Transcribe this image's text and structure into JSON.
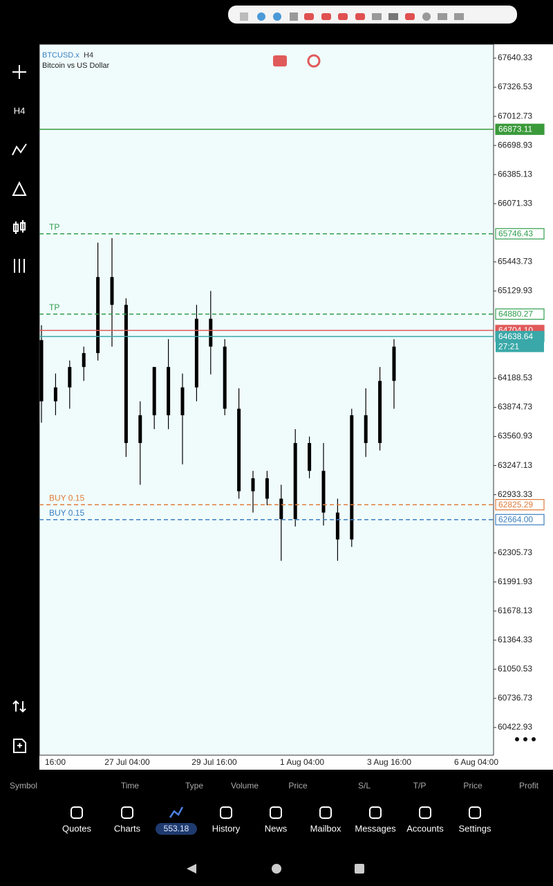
{
  "toolbar": {
    "timeframe": "H4"
  },
  "chart_data": {
    "type": "candlestick",
    "symbol": "BTCUSD.x",
    "timeframe": "H4",
    "description": "Bitcoin vs US Dollar",
    "x_labels": [
      "16:00",
      "27 Jul 04:00",
      "29 Jul 16:00",
      "1 Aug 04:00",
      "3 Aug 16:00",
      "6 Aug 04:00"
    ],
    "open": [
      64600,
      63940,
      64090,
      64310,
      64460,
      65280,
      64980,
      63490,
      63790,
      64310,
      63790,
      64090,
      64830,
      64530,
      63860,
      62970,
      63110,
      62890,
      62670,
      63490,
      63190,
      62740,
      62450,
      63790,
      63490,
      64160
    ],
    "high": [
      64760,
      64240,
      64380,
      64530,
      65650,
      65700,
      65050,
      63940,
      64310,
      64610,
      64240,
      64980,
      65130,
      64610,
      64080,
      63190,
      63190,
      63040,
      63640,
      63560,
      63490,
      62890,
      63860,
      64080,
      64310,
      64610
    ],
    "low": [
      63710,
      63790,
      63860,
      64160,
      64380,
      64530,
      63340,
      63040,
      63640,
      63640,
      63260,
      63940,
      64230,
      63790,
      62890,
      62740,
      62820,
      62220,
      62590,
      63110,
      62600,
      62220,
      62370,
      63340,
      63410,
      63860
    ],
    "close": [
      63940,
      64090,
      64310,
      64460,
      65280,
      64980,
      63490,
      63790,
      64310,
      63790,
      64090,
      64830,
      64530,
      63860,
      62970,
      63110,
      62890,
      62670,
      63490,
      63190,
      62740,
      62450,
      63790,
      63490,
      64160,
      64530
    ],
    "color": "#000000",
    "background": "#f0fcfc",
    "ylim": [
      60124.2,
      67789.7
    ],
    "yticks": [
      67640.33,
      67326.53,
      67012.73,
      66698.93,
      66385.13,
      66071.33,
      65443.73,
      65129.93,
      64188.53,
      63874.73,
      63560.93,
      63247.13,
      62933.33,
      62305.73,
      61991.93,
      61678.13,
      61364.33,
      61050.53,
      60736.73,
      60422.93
    ],
    "levels": [
      {
        "price": 66873.11,
        "color": "#3a9a3a",
        "style": "solid"
      },
      {
        "name": "TP",
        "price": 65746.43,
        "color": "#2e9e4e",
        "style": "dashed"
      },
      {
        "name": "TP",
        "price": 64880.27,
        "color": "#2e9e4e",
        "style": "dashed"
      },
      {
        "price": 64704.1,
        "price_label": "64704.10",
        "color": "#e05a5a",
        "style": "solid"
      },
      {
        "price": 64638.64,
        "color": "#3aa8a8",
        "style": "solid"
      },
      {
        "name": "BUY 0.15",
        "price": 62825.29,
        "color": "#e07b39",
        "style": "dashed"
      },
      {
        "name": "BUY 0.15",
        "price": 62664,
        "price_label": "62664.00",
        "color": "#3a7fc1",
        "style": "dashed"
      }
    ],
    "timer": "27:21"
  },
  "positions_header": [
    "Symbol",
    "Time",
    "Type",
    "Volume",
    "Price",
    "S/L",
    "T/P",
    "Price",
    "Profit"
  ],
  "nav": {
    "items": [
      "Quotes",
      "Charts",
      "History",
      "News",
      "Mailbox",
      "Messages",
      "Accounts",
      "Settings"
    ],
    "badge": "553.18"
  }
}
